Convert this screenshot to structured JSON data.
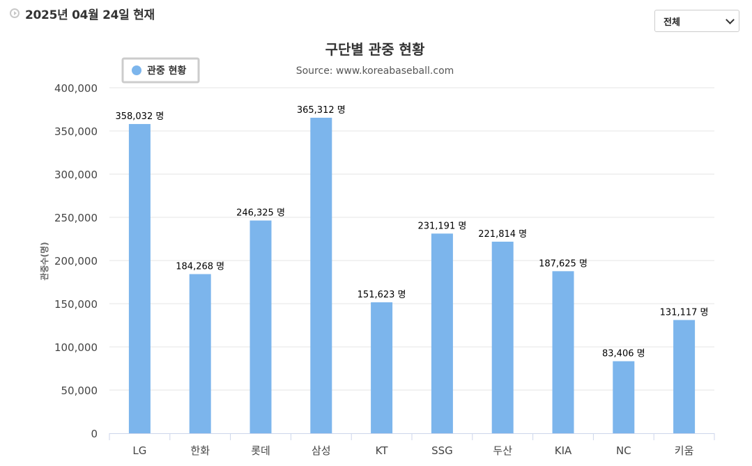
{
  "header": {
    "date_text": "2025년 04월 24일 현재"
  },
  "filter": {
    "selected": "전체"
  },
  "chart_data": {
    "type": "bar",
    "title": "구단별 관중 현황",
    "subtitle": "Source: www.koreabaseball.com",
    "xlabel": "",
    "ylabel": "관중수(명)",
    "ylim": [
      0,
      400000
    ],
    "yticks": [
      0,
      50000,
      100000,
      150000,
      200000,
      250000,
      300000,
      350000,
      400000
    ],
    "ytick_labels": [
      "0",
      "50,000",
      "100,000",
      "150,000",
      "200,000",
      "250,000",
      "300,000",
      "350,000",
      "400,000"
    ],
    "grid": true,
    "legend": {
      "position": "top-left",
      "entries": [
        "관중 현황"
      ]
    },
    "categories": [
      "LG",
      "한화",
      "롯데",
      "삼성",
      "KT",
      "SSG",
      "두산",
      "KIA",
      "NC",
      "키움"
    ],
    "series": [
      {
        "name": "관중 현황",
        "color": "#7cb5ec",
        "values": [
          358032,
          184268,
          246325,
          365312,
          151623,
          231191,
          221814,
          187625,
          83406,
          131117
        ],
        "labels": [
          "358,032 명",
          "184,268 명",
          "246,325 명",
          "365,312 명",
          "151,623 명",
          "231,191 명",
          "221,814 명",
          "187,625 명",
          "83,406 명",
          "131,117 명"
        ]
      }
    ]
  }
}
